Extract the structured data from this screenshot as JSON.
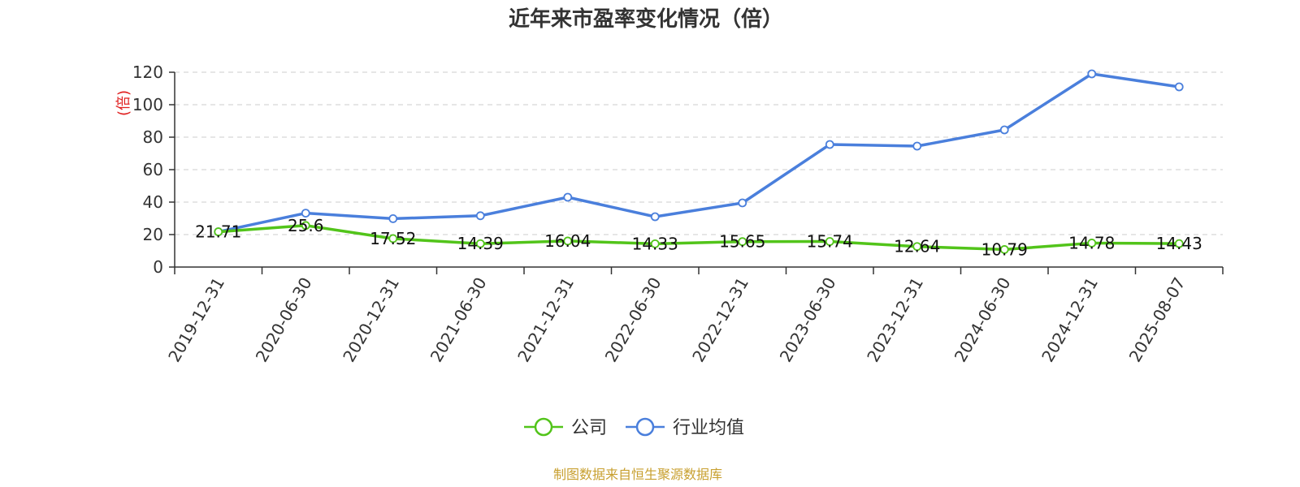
{
  "chart_data": {
    "type": "line",
    "title": "近年来市盈率变化情况（倍）",
    "ylabel": "(倍)",
    "xlabel": "",
    "ylim": [
      0,
      120
    ],
    "yticks": [
      0,
      20,
      40,
      60,
      80,
      100,
      120
    ],
    "grid": true,
    "legend_position": "bottom",
    "categories": [
      "2019-12-31",
      "2020-06-30",
      "2020-12-31",
      "2021-06-30",
      "2021-12-31",
      "2022-06-30",
      "2022-12-31",
      "2023-06-30",
      "2023-12-31",
      "2024-06-30",
      "2024-12-31",
      "2025-08-07"
    ],
    "series": [
      {
        "name": "公司",
        "color": "#52c41a",
        "show_labels": true,
        "values": [
          21.71,
          25.6,
          17.52,
          14.39,
          16.04,
          14.33,
          15.65,
          15.74,
          12.64,
          10.79,
          14.78,
          14.43
        ]
      },
      {
        "name": "行业均值",
        "color": "#4a7fdc",
        "show_labels": false,
        "values": [
          21.7,
          33.2,
          29.8,
          31.6,
          43.0,
          31.0,
          39.5,
          75.5,
          74.5,
          84.5,
          119.0,
          111.0
        ]
      }
    ]
  },
  "source_note": "制图数据来自恒生聚源数据库"
}
